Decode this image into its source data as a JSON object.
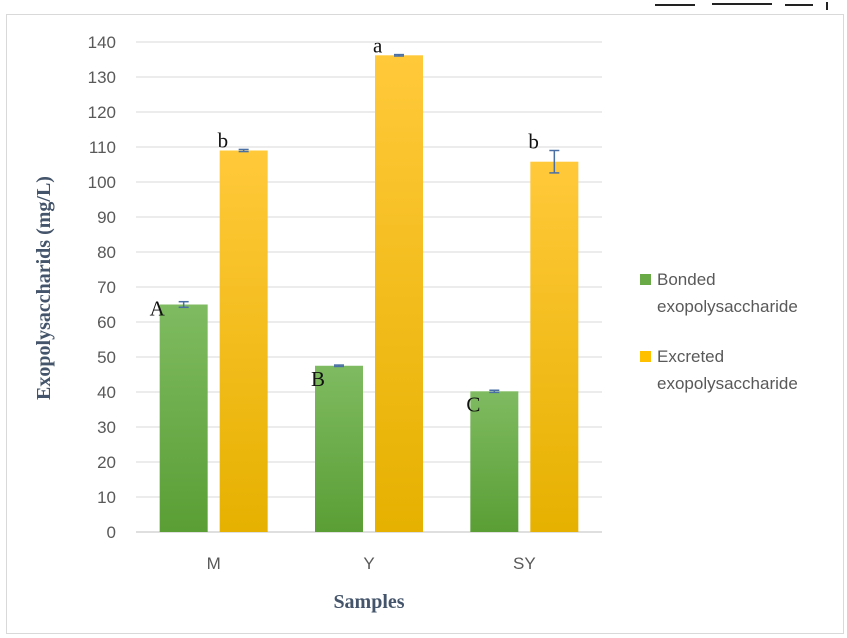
{
  "chart_data": {
    "type": "bar",
    "title": "",
    "xlabel": "Samples",
    "ylabel": "Exopolysaccharids (mg/L)",
    "ylim": [
      0,
      140
    ],
    "yticks": [
      0,
      10,
      20,
      30,
      40,
      50,
      60,
      70,
      80,
      90,
      100,
      110,
      120,
      130,
      140
    ],
    "categories": [
      "M",
      "Y",
      "SY"
    ],
    "grid": true,
    "legend_position": "right",
    "series": [
      {
        "name": "Bonded exopolysaccharide",
        "legend_lines": [
          "Bonded",
          "exopolysaccharide"
        ],
        "values": [
          65,
          47.5,
          40.2
        ],
        "errors": [
          0.8,
          0.2,
          0.3
        ],
        "significance": [
          "A",
          "B",
          "C"
        ],
        "color": "#6aaa46"
      },
      {
        "name": "Excreted exopolysaccharide",
        "legend_lines": [
          "Excreted",
          "exopolysaccharide"
        ],
        "values": [
          109,
          136.2,
          105.8
        ],
        "errors": [
          0.3,
          0.2,
          3.2
        ],
        "significance": [
          "b",
          "a",
          "b"
        ],
        "color": "#ffc000"
      }
    ]
  }
}
